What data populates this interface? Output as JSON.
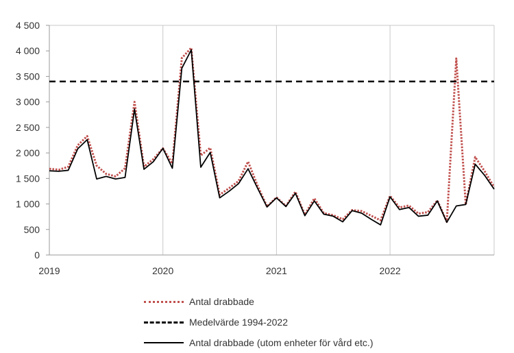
{
  "chart_data": {
    "type": "line",
    "title": "",
    "xlabel": "",
    "ylabel": "",
    "ylim": [
      0,
      4500
    ],
    "yticks": [
      0,
      500,
      1000,
      1500,
      2000,
      2500,
      3000,
      3500,
      4000,
      4500
    ],
    "ytick_labels": [
      "0",
      "500",
      "1 000",
      "1 500",
      "2 000",
      "2 500",
      "3 000",
      "3 500",
      "4 000",
      "4 500"
    ],
    "x_start": "2019-01",
    "x_labels": [
      "2019",
      "2020",
      "2021",
      "2022"
    ],
    "grid": "vertical at year boundaries",
    "legend_position": "bottom",
    "series": [
      {
        "name": "Antal drabbade",
        "color": "#c0504d",
        "style": "dotted",
        "values": [
          1690,
          1670,
          1730,
          2150,
          2330,
          1750,
          1590,
          1540,
          1700,
          3000,
          1730,
          1880,
          2090,
          1790,
          3860,
          4060,
          1950,
          2100,
          1180,
          1310,
          1450,
          1830,
          1360,
          950,
          1130,
          960,
          1240,
          790,
          1110,
          820,
          780,
          700,
          880,
          860,
          770,
          680,
          1160,
          930,
          970,
          810,
          840,
          1070,
          650,
          3850,
          990,
          1920,
          1640,
          1330
        ]
      },
      {
        "name": "Medelvärde 1994-2022",
        "color": "#000000",
        "style": "dashed",
        "values": [
          3400,
          3400,
          3400,
          3400,
          3400,
          3400,
          3400,
          3400,
          3400,
          3400,
          3400,
          3400,
          3400,
          3400,
          3400,
          3400,
          3400,
          3400,
          3400,
          3400,
          3400,
          3400,
          3400,
          3400,
          3400,
          3400,
          3400,
          3400,
          3400,
          3400,
          3400,
          3400,
          3400,
          3400,
          3400,
          3400,
          3400,
          3400,
          3400,
          3400,
          3400,
          3400,
          3400,
          3400,
          3400,
          3400,
          3400,
          3400
        ]
      },
      {
        "name": "Antal drabbade (utom enheter för vård etc.)",
        "color": "#000000",
        "style": "solid",
        "values": [
          1650,
          1640,
          1660,
          2080,
          2260,
          1490,
          1540,
          1490,
          1520,
          2860,
          1680,
          1830,
          2090,
          1700,
          3660,
          4020,
          1720,
          2010,
          1120,
          1250,
          1400,
          1690,
          1310,
          940,
          1120,
          950,
          1210,
          770,
          1060,
          800,
          760,
          650,
          870,
          820,
          700,
          590,
          1140,
          890,
          930,
          760,
          780,
          1060,
          640,
          960,
          990,
          1780,
          1560,
          1290
        ]
      }
    ]
  }
}
